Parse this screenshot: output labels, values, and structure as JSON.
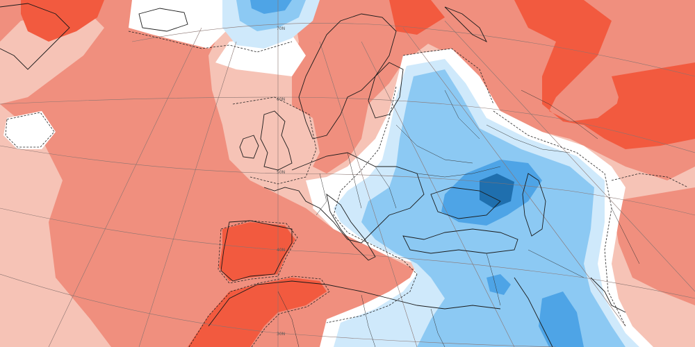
{
  "map": {
    "projection": "polar-stereographic",
    "region": "Europe, North Atlantic, North Africa, Middle East",
    "variable": "temperature anomaly",
    "colors": {
      "anomaly_strong_warm": "#f25a3f",
      "anomaly_warm": "#f08f7e",
      "anomaly_mild_warm": "#f6c3b6",
      "anomaly_neutral": "#ffffff",
      "anomaly_mild_cool": "#cfe9fb",
      "anomaly_cool": "#8cc9f3",
      "anomaly_strong_cool": "#4ea4e6",
      "anomaly_very_strong_cool": "#1f6fae",
      "coastline": "#1a1a1a",
      "borders": "#333333",
      "graticule": "#8a7470"
    },
    "latitude_labels": [
      {
        "text": "70N"
      },
      {
        "text": "60N"
      },
      {
        "text": "50N"
      },
      {
        "text": "40N"
      },
      {
        "text": "30N"
      }
    ]
  }
}
